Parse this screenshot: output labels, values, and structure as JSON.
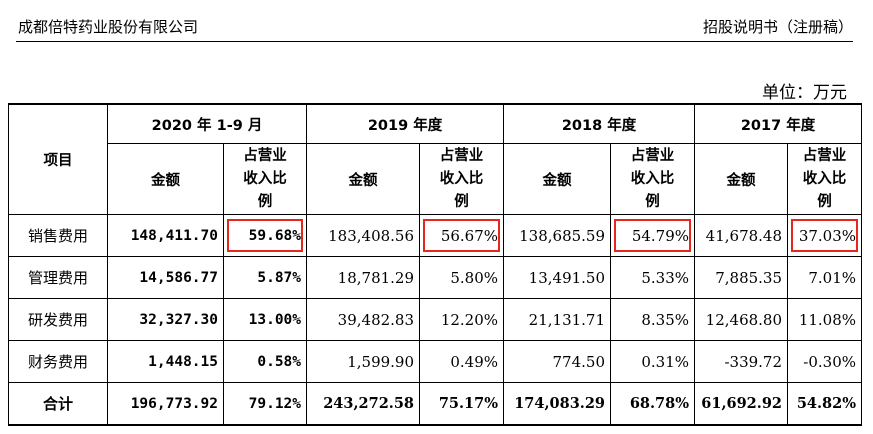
{
  "header": {
    "company": "成都倍特药业股份有限公司",
    "doc_title": "招股说明书（注册稿）"
  },
  "unit": "单位：万元",
  "table": {
    "item_header": "项目",
    "periods": [
      "2020 年 1-9 月",
      "2019 年度",
      "2018 年度",
      "2017 年度"
    ],
    "amount_header": "金额",
    "ratio_header": [
      "占营业",
      "收入比",
      "例"
    ],
    "rows": [
      {
        "label": "销售费用",
        "values": [
          "148,411.70",
          "59.68%",
          "183,408.56",
          "56.67%",
          "138,685.59",
          "54.79%",
          "41,678.48",
          "37.03%"
        ]
      },
      {
        "label": "管理费用",
        "values": [
          "14,586.77",
          "5.87%",
          "18,781.29",
          "5.80%",
          "13,491.50",
          "5.33%",
          "7,885.35",
          "7.01%"
        ]
      },
      {
        "label": "研发费用",
        "values": [
          "32,327.30",
          "13.00%",
          "39,482.83",
          "12.20%",
          "21,131.71",
          "8.35%",
          "12,468.80",
          "11.08%"
        ]
      },
      {
        "label": "财务费用",
        "values": [
          "1,448.15",
          "0.58%",
          "1,599.90",
          "0.49%",
          "774.50",
          "0.31%",
          "-339.72",
          "-0.30%"
        ]
      },
      {
        "label": "合计",
        "values": [
          "196,773.92",
          "79.12%",
          "243,272.58",
          "75.17%",
          "174,083.29",
          "68.78%",
          "61,692.92",
          "54.82%"
        ]
      }
    ]
  }
}
